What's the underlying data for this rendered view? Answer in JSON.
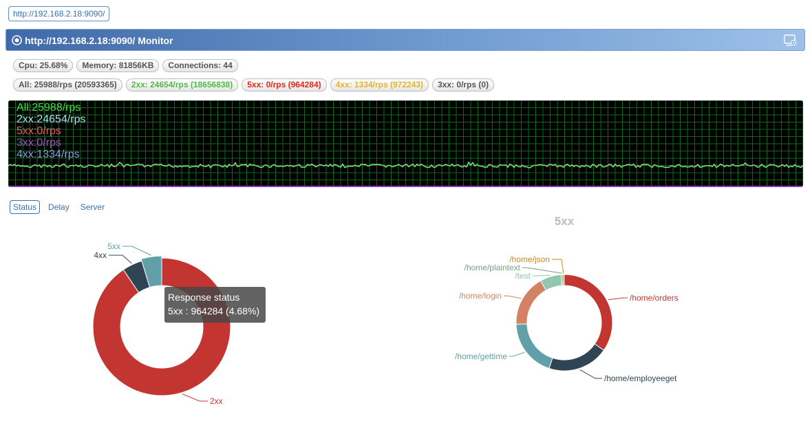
{
  "url_chip": "http://192.168.2.18:9090/",
  "header": {
    "title": "http://192.168.2.18:9090/ Monitor"
  },
  "stats": {
    "cpu": "Cpu: 25.68%",
    "memory": "Memory: 81856KB",
    "connections": "Connections: 44"
  },
  "rps": {
    "all": "All: 25988/rps (20593365)",
    "s2xx": "2xx: 24654/rps (18656838)",
    "s5xx": "5xx: 0/rps (964284)",
    "s4xx": "4xx: 1334/rps (972243)",
    "s3xx": "3xx: 0/rps (0)"
  },
  "monitor_legend": {
    "all": "All:25988/rps",
    "s2xx": "2xx:24654/rps",
    "s5xx": "5xx:0/rps",
    "s3xx": "3xx:0/rps",
    "s4xx": "4xx:1334/rps"
  },
  "tabs": [
    "Status",
    "Delay",
    "Server"
  ],
  "tooltip": {
    "title": "Response status",
    "value": "5xx : 964284 (4.68%)"
  },
  "chart_data": [
    {
      "type": "pie",
      "title": "",
      "categories": [
        "2xx",
        "4xx",
        "5xx"
      ],
      "values": [
        18656838,
        972243,
        964284
      ],
      "colors": [
        "#c23531",
        "#2f4554",
        "#61a0a8"
      ],
      "donut": true
    },
    {
      "type": "pie",
      "title": "5xx",
      "categories": [
        "/home/orders",
        "/home/employeeget",
        "/home/gettime",
        "/home/login",
        "/test",
        "/home/plaintext",
        "/home/json"
      ],
      "values": [
        34,
        20,
        19,
        17,
        7,
        0.5,
        0.5
      ],
      "colors": [
        "#c23531",
        "#2f4554",
        "#61a0a8",
        "#d48265",
        "#91c7ae",
        "#749f83",
        "#ca8622"
      ],
      "donut": true
    }
  ],
  "colors": {
    "header_start": "#3f69a8",
    "header_end": "#9ec1e8",
    "grid": "#0d6b1a",
    "trace": "#7ed87e",
    "legend_all": "#44dd44",
    "legend_2xx": "#a8e0e8",
    "legend_5xx": "#e06060",
    "legend_3xx": "#a050c0",
    "legend_4xx": "#8c9cdf"
  }
}
